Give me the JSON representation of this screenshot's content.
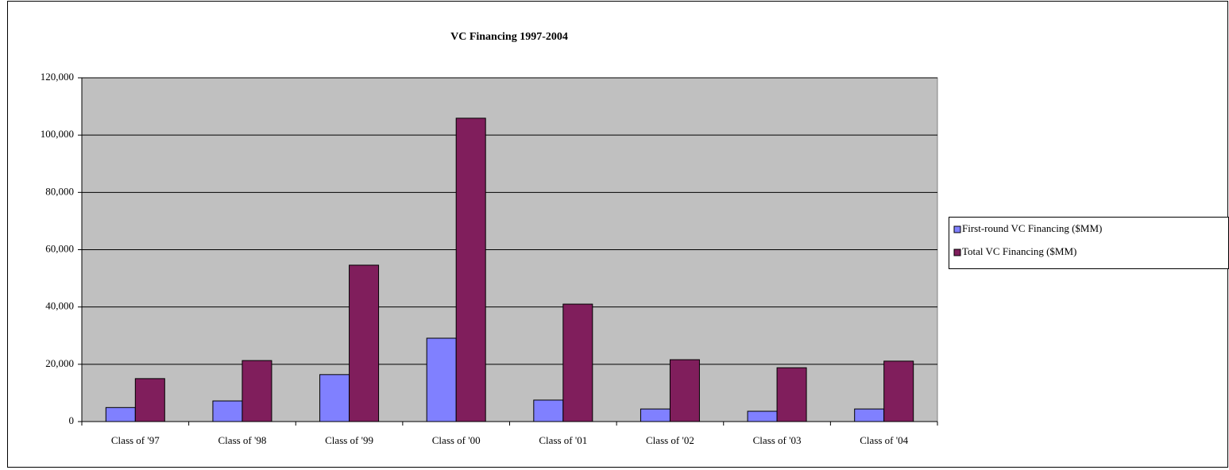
{
  "chart_data": {
    "type": "bar",
    "title": "VC Financing 1997-2004",
    "categories": [
      "Class of '97",
      "Class of '98",
      "Class of '99",
      "Class of '00",
      "Class of '01",
      "Class of '02",
      "Class of '03",
      "Class of '04"
    ],
    "series": [
      {
        "name": "First-round VC Financing ($MM)",
        "color": "#8080ff",
        "values": [
          4900,
          7200,
          16400,
          29100,
          7500,
          4400,
          3600,
          4400
        ]
      },
      {
        "name": "Total VC Financing ($MM)",
        "color": "#801e5c",
        "values": [
          15000,
          21300,
          54600,
          105900,
          41000,
          21600,
          18800,
          21100
        ]
      }
    ],
    "ylim": [
      0,
      120000
    ],
    "yticks": [
      0,
      {
        "value": 20000,
        "label": "20,000"
      },
      {
        "value": 40000,
        "label": "40,000"
      },
      {
        "value": 60000,
        "label": "60,000"
      },
      {
        "value": 80000,
        "label": "80,000"
      },
      {
        "value": 100000,
        "label": "100,000"
      },
      {
        "value": 120000,
        "label": "120,000"
      }
    ],
    "grid": true,
    "legend": "right",
    "plot_background": "#c0c0c0"
  }
}
